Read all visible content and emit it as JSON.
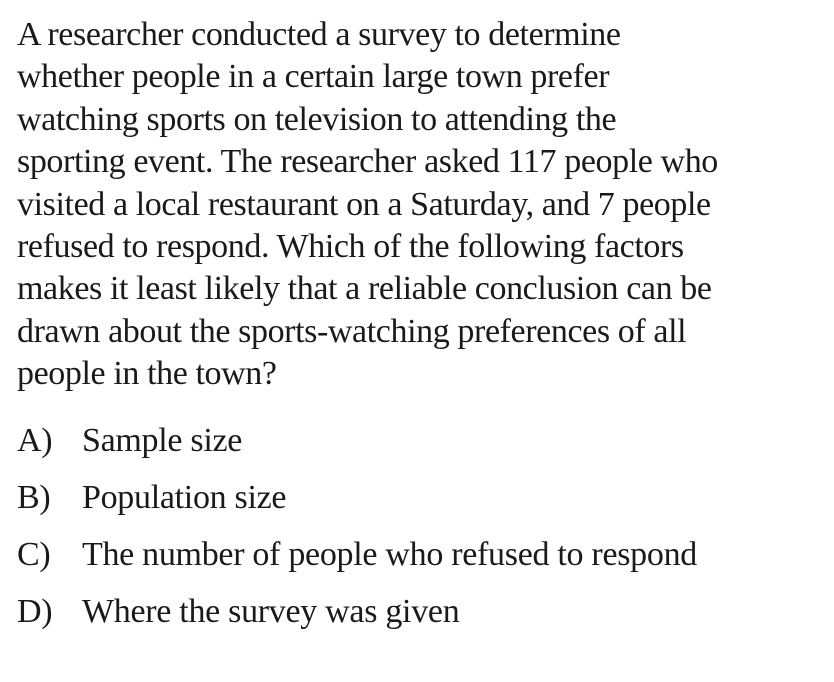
{
  "question": {
    "stem_lines": [
      "A researcher conducted a survey to determine",
      "whether people in a certain large town prefer",
      "watching sports on television to attending the",
      "sporting event.  The researcher asked 117 people who",
      "visited a local restaurant on a Saturday, and 7 people",
      "refused to respond.  Which of the following factors",
      "makes it least likely that a reliable conclusion can be",
      "drawn about the sports-watching preferences of all",
      "people in the town?"
    ],
    "choices": [
      {
        "letter": "A)",
        "text": "Sample size"
      },
      {
        "letter": "B)",
        "text": "Population size"
      },
      {
        "letter": "C)",
        "text": "The number of people who refused to respond"
      },
      {
        "letter": "D)",
        "text": "Where the survey was given"
      }
    ]
  }
}
